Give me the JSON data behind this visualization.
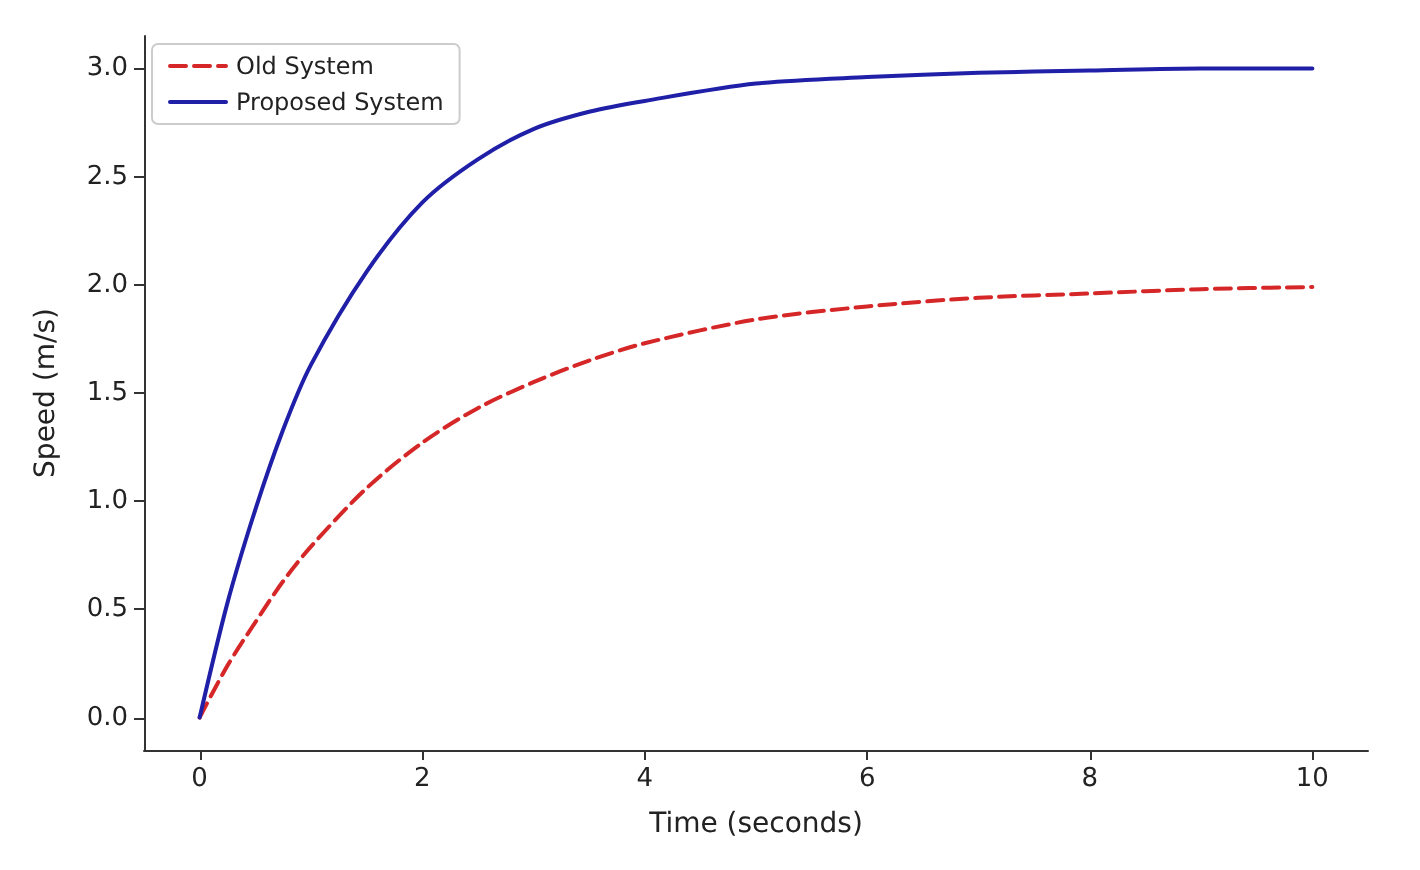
{
  "chart_data": {
    "type": "line",
    "xlabel": "Time (seconds)",
    "ylabel": "Speed (m/s)",
    "x": [
      0,
      0.25,
      0.5,
      0.75,
      1,
      1.5,
      2,
      2.5,
      3,
      3.5,
      4,
      5,
      6,
      7,
      8,
      9,
      10
    ],
    "series": [
      {
        "name": "Old System",
        "color": "#d62728",
        "line_style": "dashed",
        "values": [
          0,
          0.24,
          0.44,
          0.63,
          0.79,
          1.06,
          1.27,
          1.43,
          1.55,
          1.65,
          1.73,
          1.84,
          1.9,
          1.94,
          1.96,
          1.98,
          1.99
        ]
      },
      {
        "name": "Proposed System",
        "color": "#1f1fa8",
        "line_style": "solid",
        "values": [
          0,
          0.53,
          0.96,
          1.33,
          1.63,
          2.06,
          2.38,
          2.58,
          2.72,
          2.8,
          2.85,
          2.93,
          2.96,
          2.98,
          2.99,
          3.0,
          3.0
        ]
      }
    ],
    "xlim": [
      -0.5,
      10.5
    ],
    "xticks": [
      0,
      2,
      4,
      6,
      8,
      10
    ],
    "ylim": [
      -0.15,
      3.15
    ],
    "yticks": [
      {
        "value": 0,
        "label": "0.0"
      },
      {
        "value": 0.5,
        "label": "0.5"
      },
      {
        "value": 1,
        "label": "1.0"
      },
      {
        "value": 1.5,
        "label": "1.5"
      },
      {
        "value": 2,
        "label": "2.0"
      },
      {
        "value": 2.5,
        "label": "2.5"
      },
      {
        "value": 3,
        "label": "3.0"
      }
    ],
    "legend": "top left",
    "grid": false,
    "marker": "none"
  }
}
